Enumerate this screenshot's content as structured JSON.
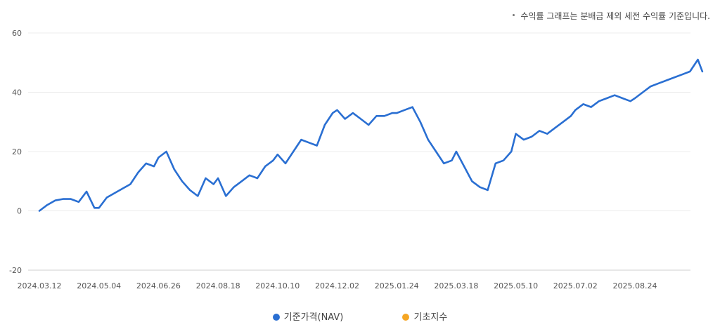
{
  "note": "수익률 그래프는 분배금 제외 세전 수익률 기준입니다.",
  "legend": {
    "items": [
      {
        "label": "기준가격(NAV)",
        "color": "#2a6fd2"
      },
      {
        "label": "기초지수",
        "color": "#f5a623"
      }
    ]
  },
  "chart_data": {
    "type": "line",
    "title": "",
    "xlabel": "",
    "ylabel": "",
    "ylim": [
      -20,
      60
    ],
    "y_ticks": [
      "60",
      "40",
      "20",
      "0",
      "-20"
    ],
    "x_ticks": [
      "2024.03.12",
      "2024.05.04",
      "2024.06.26",
      "2024.08.18",
      "2024.10.10",
      "2024.12.02",
      "2025.01.24",
      "2025.03.18",
      "2025.05.10",
      "2025.07.02",
      "2025.08.24"
    ],
    "grid": true,
    "legend_position": "bottom",
    "series": [
      {
        "name": "기준가격(NAV)",
        "color": "#2a6fd2",
        "x": [
          "2024.03.12",
          "2024.03.19",
          "2024.03.26",
          "2024.04.02",
          "2024.04.09",
          "2024.04.16",
          "2024.04.23",
          "2024.04.30",
          "2024.05.04",
          "2024.05.11",
          "2024.05.18",
          "2024.05.25",
          "2024.06.01",
          "2024.06.08",
          "2024.06.15",
          "2024.06.22",
          "2024.06.26",
          "2024.07.03",
          "2024.07.10",
          "2024.07.17",
          "2024.07.24",
          "2024.07.31",
          "2024.08.07",
          "2024.08.14",
          "2024.08.18",
          "2024.08.25",
          "2024.09.01",
          "2024.09.08",
          "2024.09.15",
          "2024.09.22",
          "2024.09.29",
          "2024.10.06",
          "2024.10.10",
          "2024.10.17",
          "2024.10.24",
          "2024.10.31",
          "2024.11.07",
          "2024.11.14",
          "2024.11.21",
          "2024.11.28",
          "2024.12.02",
          "2024.12.09",
          "2024.12.16",
          "2024.12.23",
          "2024.12.30",
          "2025.01.06",
          "2025.01.13",
          "2025.01.20",
          "2025.01.24",
          "2025.01.31",
          "2025.02.07",
          "2025.02.14",
          "2025.02.21",
          "2025.02.28",
          "2025.03.07",
          "2025.03.14",
          "2025.03.18",
          "2025.03.25",
          "2025.04.01",
          "2025.04.08",
          "2025.04.15",
          "2025.04.22",
          "2025.04.29",
          "2025.05.06",
          "2025.05.10",
          "2025.05.17",
          "2025.05.24",
          "2025.05.31",
          "2025.06.07",
          "2025.06.14",
          "2025.06.21",
          "2025.06.28",
          "2025.07.02",
          "2025.07.09",
          "2025.07.16",
          "2025.07.23",
          "2025.07.30",
          "2025.08.06",
          "2025.08.13",
          "2025.08.20",
          "2025.08.24",
          "2025.08.31",
          "2025.09.07",
          "2025.09.14",
          "2025.09.21",
          "2025.09.28",
          "2025.10.05",
          "2025.10.12",
          "2025.10.19",
          "2025.10.23"
        ],
        "values": [
          0,
          2,
          3.5,
          4,
          4,
          3,
          6.5,
          1,
          1,
          4.5,
          6,
          7.5,
          9,
          13,
          16,
          15,
          18,
          20,
          14,
          10,
          7,
          5,
          11,
          9,
          11,
          5,
          8,
          10,
          12,
          11,
          15,
          17,
          19,
          16,
          20,
          24,
          23,
          22,
          29,
          33,
          34,
          31,
          33,
          31,
          29,
          32,
          32,
          33,
          33,
          34,
          35,
          30,
          24,
          20,
          16,
          17,
          20,
          15,
          10,
          8,
          7,
          16,
          17,
          20,
          26,
          24,
          25,
          27,
          26,
          28,
          30,
          32,
          34,
          36,
          35,
          37,
          38,
          39,
          38,
          37,
          38,
          40,
          42,
          43,
          44,
          45,
          46,
          47,
          51,
          47
        ]
      },
      {
        "name": "기초지수",
        "color": "#f5a623",
        "x": [],
        "values": []
      }
    ]
  }
}
